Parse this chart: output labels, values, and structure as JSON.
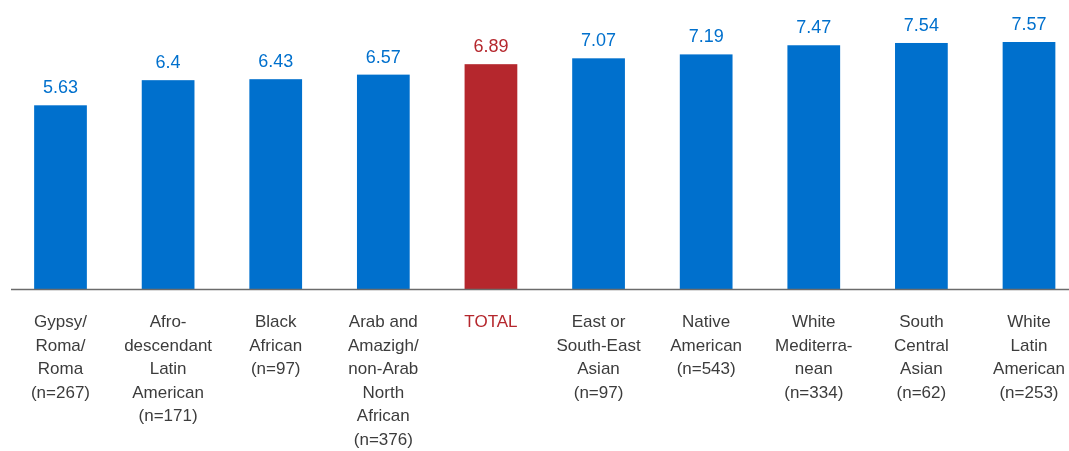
{
  "chart_data": {
    "type": "bar",
    "categories": [
      "Gypsy/\nRoma/\nRoma\n(n=267)",
      "Afro-\ndescendant\nLatin\nAmerican\n(n=171)",
      "Black\nAfrican\n(n=97)",
      "Arab and\nAmazigh/\nnon-Arab\nNorth\nAfrican\n(n=376)",
      "TOTAL",
      "East or\nSouth-East\nAsian\n(n=97)",
      "Native\nAmerican\n(n=543)",
      "White\nMediterra-\nnean\n(n=334)",
      "South\nCentral\nAsian\n(n=62)",
      "White\nLatin\nAmerican\n(n=253)"
    ],
    "values": [
      5.63,
      6.4,
      6.43,
      6.57,
      6.89,
      7.07,
      7.19,
      7.47,
      7.54,
      7.57
    ],
    "colors": [
      "#0070cd",
      "#0070cd",
      "#0070cd",
      "#0070cd",
      "#b5272d",
      "#0070cd",
      "#0070cd",
      "#0070cd",
      "#0070cd",
      "#0070cd"
    ],
    "data_labels": true
  }
}
